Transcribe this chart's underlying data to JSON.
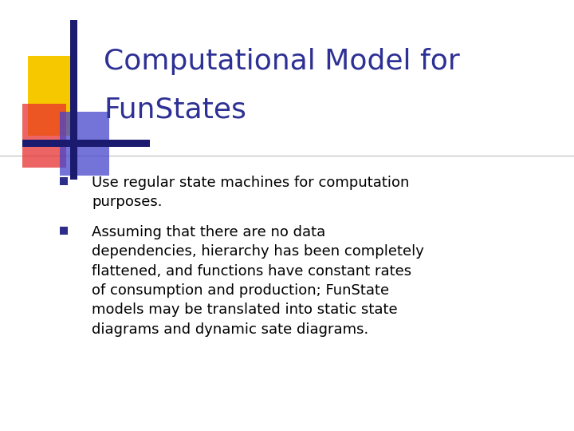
{
  "title_line1": "Computational Model for",
  "title_line2": "FunStates",
  "title_color": "#2d3094",
  "title_fontsize": 26,
  "background_color": "#ffffff",
  "separator_color": "#bbbbbb",
  "bullet_color": "#2d2d8a",
  "bullet_text_color": "#000000",
  "bullet_fontsize": 13.0,
  "bullet1": "Use regular state machines for computation\npurposes.",
  "bullet2": "Assuming that there are no data\ndependencies, hierarchy has been completely\nflattened, and functions have constant rates\nof consumption and production; FunState\nmodels may be translated into static state\ndiagrams and dynamic sate diagrams."
}
